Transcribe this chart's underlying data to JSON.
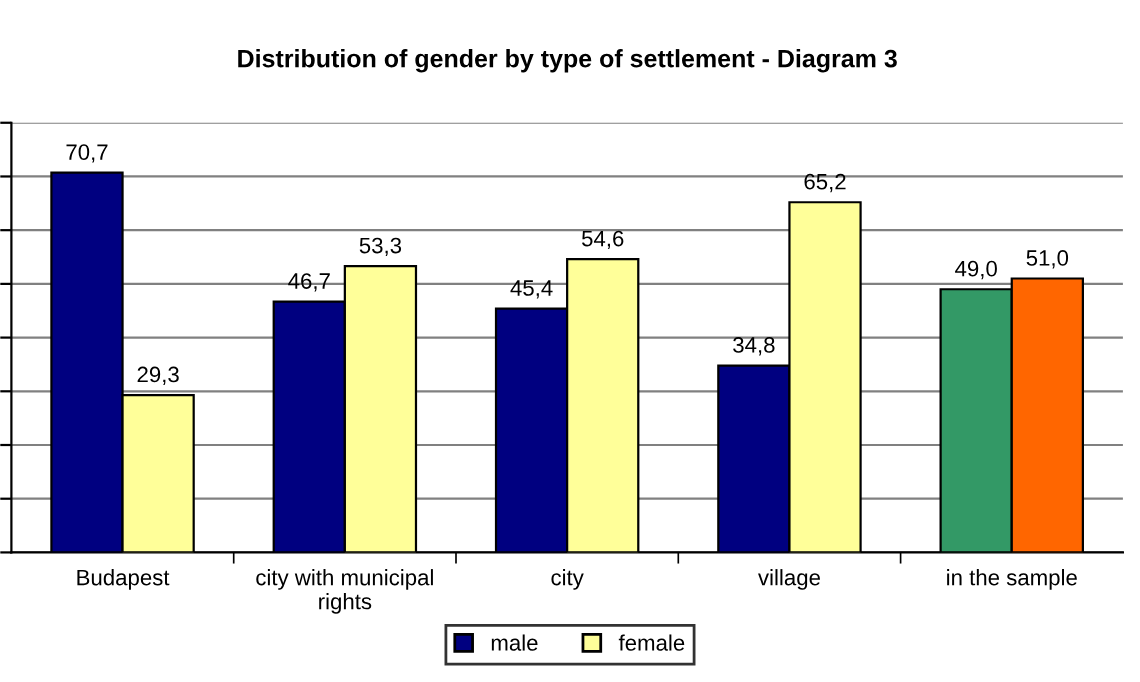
{
  "chart_data": {
    "type": "bar",
    "title": "Distribution of gender by type of settlement - Diagram 3",
    "categories": [
      "Budapest",
      "city with municipal\nrights",
      "city",
      "village",
      "in the sample"
    ],
    "series": [
      {
        "name": "male",
        "color": "#000080",
        "colors": [
          "#000080",
          "#000080",
          "#000080",
          "#000080",
          "#339966"
        ],
        "values": [
          70.7,
          46.7,
          45.4,
          34.8,
          49.0
        ],
        "value_labels": [
          "70,7",
          "46,7",
          "45,4",
          "34,8",
          "49,0"
        ]
      },
      {
        "name": "female",
        "color": "#ffff99",
        "colors": [
          "#ffff99",
          "#ffff99",
          "#ffff99",
          "#ffff99",
          "#ff6600"
        ],
        "values": [
          29.3,
          53.3,
          54.6,
          65.2,
          51.0
        ],
        "value_labels": [
          "29,3",
          "53,3",
          "54,6",
          "65,2",
          "51,0"
        ]
      }
    ],
    "ylim": [
      0,
      80
    ],
    "yticks": [
      {
        "value": 0,
        "label": null
      },
      {
        "value": 10,
        "label": null
      },
      {
        "value": 20,
        "label": null
      },
      {
        "value": 30,
        "label": null
      },
      {
        "value": 40,
        "label": null
      },
      {
        "value": 50,
        "label": null
      },
      {
        "value": 60,
        "label": null
      },
      {
        "value": 70,
        "label": null
      },
      {
        "value": 80,
        "label": null
      }
    ],
    "tick_labels": "x",
    "grid": "y",
    "legend": "bottom"
  }
}
